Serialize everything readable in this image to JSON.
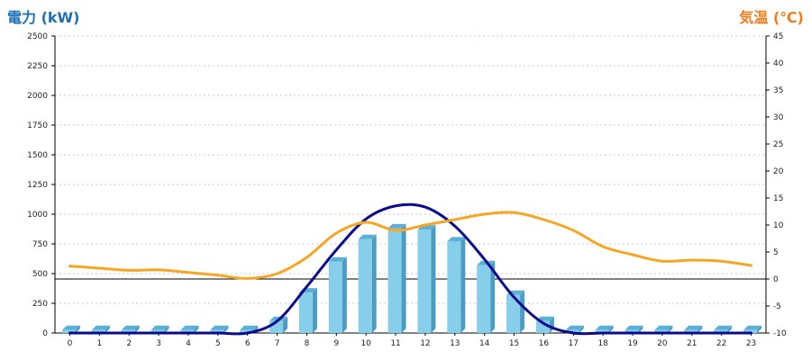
{
  "chart_data": {
    "type": "bar",
    "left_axis_title": "電力 (kW)",
    "right_axis_title": "気温 (℃)",
    "categories": [
      "0",
      "1",
      "2",
      "3",
      "4",
      "5",
      "6",
      "7",
      "8",
      "9",
      "10",
      "11",
      "12",
      "13",
      "14",
      "15",
      "16",
      "17",
      "18",
      "19",
      "20",
      "21",
      "22",
      "23"
    ],
    "left_ticks": [
      "0",
      "250",
      "500",
      "750",
      "1000",
      "1250",
      "1500",
      "1750",
      "2000",
      "2250",
      "2500"
    ],
    "right_ticks": [
      "-10",
      "-5",
      "0",
      "5",
      "10",
      "15",
      "20",
      "25",
      "30",
      "35",
      "40",
      "45"
    ],
    "ylim_left": [
      0,
      2500
    ],
    "ylim_right": [
      -10,
      45
    ],
    "grid": true,
    "series": [
      {
        "type": "bar",
        "axis": "left",
        "color": "#87ceeb",
        "values": [
          25,
          25,
          25,
          25,
          25,
          25,
          25,
          100,
          340,
          600,
          790,
          880,
          870,
          770,
          570,
          320,
          100,
          25,
          25,
          25,
          25,
          25,
          25,
          25
        ]
      },
      {
        "type": "line",
        "axis": "left",
        "color": "#0a0a8c",
        "values": [
          0,
          0,
          0,
          0,
          0,
          0,
          0,
          100,
          390,
          700,
          960,
          1070,
          1060,
          900,
          620,
          300,
          80,
          0,
          0,
          0,
          0,
          0,
          0,
          0
        ]
      },
      {
        "type": "line",
        "axis": "right",
        "color": "#f5a623",
        "values": [
          2.4,
          2.0,
          1.6,
          1.7,
          1.2,
          0.7,
          0.1,
          1.0,
          4.0,
          8.5,
          10.5,
          9.0,
          10.0,
          11.0,
          12.0,
          12.3,
          11.0,
          9.0,
          6.0,
          4.5,
          3.3,
          3.5,
          3.3,
          2.5
        ]
      }
    ]
  }
}
